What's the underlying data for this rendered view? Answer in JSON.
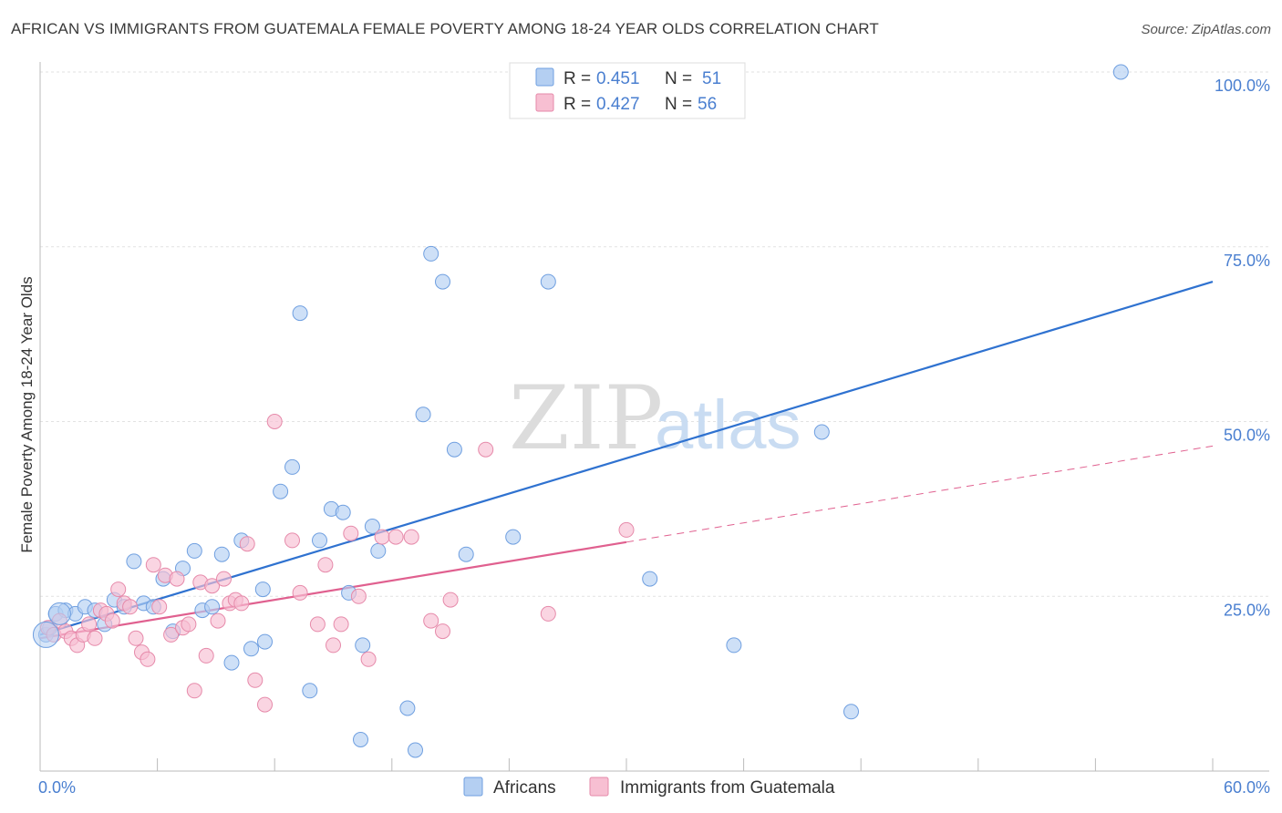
{
  "title": "AFRICAN VS IMMIGRANTS FROM GUATEMALA FEMALE POVERTY AMONG 18-24 YEAR OLDS CORRELATION CHART",
  "source": "Source: ZipAtlas.com",
  "watermark": {
    "bold": "ZIP",
    "light": "atlas"
  },
  "colors": {
    "blue": "#6f9fe0",
    "blue_fill": "#b4cff2",
    "blue_line": "#2f72d0",
    "pink": "#e68aaa",
    "pink_fill": "#f7bfd2",
    "pink_line": "#e0608f",
    "tick_text": "#4a7fd0"
  },
  "legend": {
    "rows": [
      {
        "r_label": "R =",
        "r_value": "0.451",
        "n_label": "N =",
        "n_value": "51"
      },
      {
        "r_label": "R =",
        "r_value": "0.427",
        "n_label": "N =",
        "n_value": "56"
      }
    ]
  },
  "chart_data": {
    "type": "scatter",
    "ylabel": "Female Poverty Among 18-24 Year Olds",
    "xlim": [
      0,
      60
    ],
    "ylim": [
      0,
      100
    ],
    "x_tick_labels": [
      {
        "value": 0,
        "label": "0.0%"
      },
      {
        "value": 60,
        "label": "60.0%"
      }
    ],
    "y_tick_labels": [
      {
        "value": 25,
        "label": "25.0%"
      },
      {
        "value": 50,
        "label": "50.0%"
      },
      {
        "value": 75,
        "label": "75.0%"
      },
      {
        "value": 100,
        "label": "100.0%"
      }
    ],
    "grid": true,
    "legend_position": "top-center",
    "series": [
      {
        "name": "Africans",
        "color": "blue",
        "trend": {
          "x0": 0,
          "y0": 19.5,
          "x1": 60,
          "y1": 70
        },
        "points": [
          [
            0.3,
            19.5
          ],
          [
            0.8,
            22.5
          ],
          [
            1.3,
            23.0
          ],
          [
            1.8,
            22.5
          ],
          [
            2.3,
            23.5
          ],
          [
            2.8,
            23.0
          ],
          [
            3.3,
            21.0
          ],
          [
            3.8,
            24.5
          ],
          [
            4.3,
            23.5
          ],
          [
            4.8,
            30.0
          ],
          [
            5.3,
            24.0
          ],
          [
            5.8,
            23.5
          ],
          [
            6.3,
            27.5
          ],
          [
            6.8,
            20.0
          ],
          [
            7.3,
            29.0
          ],
          [
            7.9,
            31.5
          ],
          [
            8.3,
            23.0
          ],
          [
            8.8,
            23.5
          ],
          [
            9.3,
            31.0
          ],
          [
            9.8,
            15.5
          ],
          [
            10.3,
            33.0
          ],
          [
            10.8,
            17.5
          ],
          [
            11.4,
            26.0
          ],
          [
            11.5,
            18.5
          ],
          [
            12.3,
            40.0
          ],
          [
            12.9,
            43.5
          ],
          [
            13.3,
            65.5
          ],
          [
            13.8,
            11.5
          ],
          [
            14.3,
            33.0
          ],
          [
            14.9,
            37.5
          ],
          [
            15.5,
            37.0
          ],
          [
            15.8,
            25.5
          ],
          [
            16.4,
            4.5
          ],
          [
            16.5,
            18.0
          ],
          [
            17.0,
            35.0
          ],
          [
            17.3,
            31.5
          ],
          [
            18.8,
            9.0
          ],
          [
            19.2,
            3.0
          ],
          [
            19.6,
            51.0
          ],
          [
            20.0,
            74.0
          ],
          [
            20.6,
            70.0
          ],
          [
            21.2,
            46.0
          ],
          [
            21.8,
            31.0
          ],
          [
            24.2,
            33.5
          ],
          [
            26.0,
            70.0
          ],
          [
            31.2,
            27.5
          ],
          [
            35.5,
            18.0
          ],
          [
            40.0,
            48.5
          ],
          [
            41.5,
            8.5
          ],
          [
            55.3,
            100.0
          ],
          [
            0.5,
            20.5
          ]
        ]
      },
      {
        "name": "Immigrants from Guatemala",
        "color": "pink",
        "trend": {
          "x0": 0,
          "y0": 19.0,
          "x1": 60,
          "y1": 46.5,
          "solid_until": 30
        },
        "points": [
          [
            0.4,
            20.5
          ],
          [
            0.7,
            19.5
          ],
          [
            1.0,
            21.5
          ],
          [
            1.3,
            20.0
          ],
          [
            1.6,
            19.0
          ],
          [
            1.9,
            18.0
          ],
          [
            2.2,
            19.5
          ],
          [
            2.5,
            21.0
          ],
          [
            2.8,
            19.0
          ],
          [
            3.1,
            23.0
          ],
          [
            3.4,
            22.5
          ],
          [
            3.7,
            21.5
          ],
          [
            4.0,
            26.0
          ],
          [
            4.3,
            24.0
          ],
          [
            4.6,
            23.5
          ],
          [
            4.9,
            19.0
          ],
          [
            5.2,
            17.0
          ],
          [
            5.5,
            16.0
          ],
          [
            5.8,
            29.5
          ],
          [
            6.1,
            23.5
          ],
          [
            6.4,
            28.0
          ],
          [
            6.7,
            19.5
          ],
          [
            7.0,
            27.5
          ],
          [
            7.3,
            20.5
          ],
          [
            7.6,
            21.0
          ],
          [
            7.9,
            11.5
          ],
          [
            8.2,
            27.0
          ],
          [
            8.5,
            16.5
          ],
          [
            8.8,
            26.5
          ],
          [
            9.1,
            21.5
          ],
          [
            9.4,
            27.5
          ],
          [
            9.7,
            24.0
          ],
          [
            10.0,
            24.5
          ],
          [
            10.3,
            24.0
          ],
          [
            10.6,
            32.5
          ],
          [
            11.0,
            13.0
          ],
          [
            11.5,
            9.5
          ],
          [
            12.0,
            50.0
          ],
          [
            12.9,
            33.0
          ],
          [
            13.3,
            25.5
          ],
          [
            14.2,
            21.0
          ],
          [
            14.6,
            29.5
          ],
          [
            15.0,
            18.0
          ],
          [
            15.4,
            21.0
          ],
          [
            15.9,
            34.0
          ],
          [
            16.3,
            25.0
          ],
          [
            16.8,
            16.0
          ],
          [
            17.5,
            33.5
          ],
          [
            18.2,
            33.5
          ],
          [
            19.0,
            33.5
          ],
          [
            20.0,
            21.5
          ],
          [
            20.6,
            20.0
          ],
          [
            21.0,
            24.5
          ],
          [
            22.8,
            46.0
          ],
          [
            26.0,
            22.5
          ],
          [
            30.0,
            34.5
          ]
        ]
      }
    ],
    "bottom_legend": [
      "Africans",
      "Immigrants from Guatemala"
    ]
  }
}
